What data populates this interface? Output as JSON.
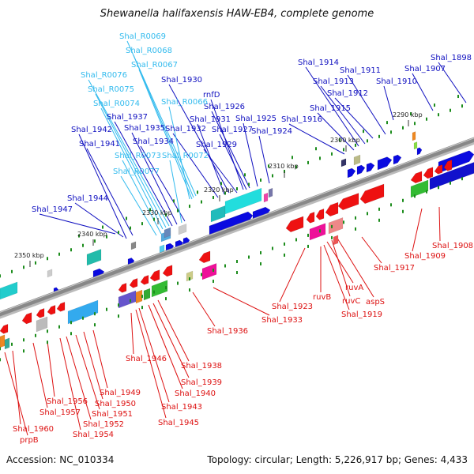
{
  "title": "Shewanella halifaxensis HAW-EB4, complete genome",
  "accession": "Accession: NC_010334",
  "topology": "Topology: circular; Length: 5,226,917 bp; Genes: 4,433",
  "colors": {
    "plus_label": "#1010c0",
    "rna_label": "#33bbee",
    "minus_label": "#dd1111",
    "backbone": "#888888",
    "tick": "#1c8c1c"
  },
  "kbp_markers": [
    "2290 kbp",
    "2300 kbp",
    "2310 kbp",
    "2320 kbp",
    "2330 kbp",
    "2340 kbp",
    "2350 kbp"
  ],
  "plus_labels": [
    "Shal_1898",
    "Shal_1907",
    "Shal_1910",
    "Shal_1911",
    "Shal_1912",
    "Shal_1913",
    "Shal_1914",
    "Shal_1915",
    "Shal_1916",
    "Shal_1924",
    "Shal_1925",
    "Shal_1926",
    "rnfD",
    "Shal_1927",
    "Shal_1929",
    "Shal_1930",
    "Shal_1931",
    "Shal_1932",
    "Shal_1934",
    "Shal_1935",
    "Shal_1937",
    "Shal_1941",
    "Shal_1942",
    "Shal_1944",
    "Shal_1947"
  ],
  "rna_labels": [
    "Shal_R0069",
    "Shal_R0068",
    "Shal_R0067",
    "Shal_R0076",
    "Shal_R0075",
    "Shal_R0074",
    "Shal_R0066",
    "Shal_R0073",
    "Shal_R0072",
    "Shal_R0077"
  ],
  "minus_labels": [
    "Shal_1908",
    "Shal_1909",
    "Shal_1917",
    "aspS",
    "ruvC",
    "ruvA",
    "Shal_1919",
    "ruvB",
    "Shal_1923",
    "Shal_1933",
    "Shal_1936",
    "Shal_1938",
    "Shal_1939",
    "Shal_1940",
    "Shal_1943",
    "Shal_1945",
    "Shal_1946",
    "Shal_1949",
    "Shal_1950",
    "Shal_1951",
    "Shal_1952",
    "Shal_1954",
    "Shal_1956",
    "Shal_1957",
    "Shal_1960",
    "prpB"
  ]
}
